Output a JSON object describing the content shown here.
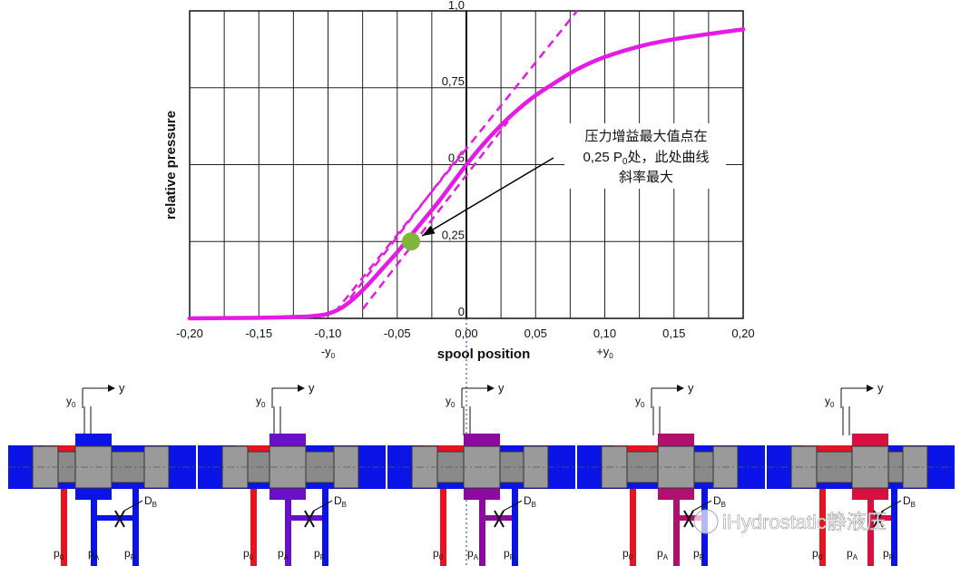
{
  "chart_data": {
    "type": "line",
    "xlabel": "spool position",
    "ylabel": "relative pressure",
    "xlim": [
      -0.2,
      0.2
    ],
    "ylim": [
      0,
      1.0
    ],
    "grid": true,
    "x_ticks": [
      "-0,20",
      "-0,15",
      "-0,10",
      "-0,05",
      "0,00",
      "0,05",
      "0,10",
      "0,15",
      "0,20"
    ],
    "x_tick_values": [
      -0.2,
      -0.15,
      -0.1,
      -0.05,
      0.0,
      0.05,
      0.1,
      0.15,
      0.2
    ],
    "y_ticks": [
      "0",
      "0,25",
      "0,5",
      "0,75",
      "1,0"
    ],
    "y_tick_values": [
      0,
      0.25,
      0.5,
      0.75,
      1.0
    ],
    "x_marker_labels": {
      "neg": "-y",
      "pos": "+y",
      "sub": "0"
    },
    "series": [
      {
        "color": "#e619e6",
        "x": [
          -0.2,
          -0.15,
          -0.12,
          -0.11,
          -0.1,
          -0.09,
          -0.08,
          -0.07,
          -0.06,
          -0.05,
          -0.04,
          -0.03,
          -0.02,
          -0.01,
          0.0,
          0.01,
          0.02,
          0.03,
          0.04,
          0.05,
          0.06,
          0.08,
          0.1,
          0.13,
          0.16,
          0.2
        ],
        "y": [
          0.0,
          0.002,
          0.005,
          0.008,
          0.015,
          0.035,
          0.07,
          0.115,
          0.165,
          0.215,
          0.27,
          0.325,
          0.38,
          0.44,
          0.5,
          0.555,
          0.605,
          0.65,
          0.69,
          0.725,
          0.755,
          0.81,
          0.85,
          0.89,
          0.915,
          0.94
        ]
      }
    ],
    "tangents": [
      {
        "x": [
          -0.09,
          0.0
        ],
        "y": [
          0.03,
          0.56
        ]
      },
      {
        "x": [
          -0.075,
          0.03
        ],
        "y": [
          0.03,
          0.64
        ]
      },
      {
        "x": [
          -0.095,
          0.08
        ],
        "y": [
          0.02,
          1.0
        ]
      }
    ],
    "highlight_point": {
      "x": -0.04,
      "y": 0.25,
      "color": "#7fb63a"
    },
    "annotation": {
      "line1": "压力增益最大值点在",
      "line2_prefix": "0,25 P",
      "line2_sub": "0",
      "line2_suffix": "处，此处曲线",
      "line3": "斜率最大"
    }
  },
  "valve_diagram": {
    "colors": {
      "body": "#0a14e6",
      "spool": "#8a8a8a",
      "supply": "#e6141e",
      "return": "#0a14e6"
    },
    "tint_colors": [
      "#0a14e6",
      "#6a10c8",
      "#8c0aa0",
      "#b01070",
      "#d81040"
    ],
    "labels": {
      "y": "y",
      "y0": "y",
      "y0_sub": "0",
      "db": "D",
      "db_sub": "B",
      "p0": "p",
      "p0_sub": "0",
      "pa": "p",
      "pa_sub": "A",
      "pr": "p",
      "pr_sub": "R"
    },
    "panel_count": 5
  },
  "watermark": "iHydrostatic静液压"
}
